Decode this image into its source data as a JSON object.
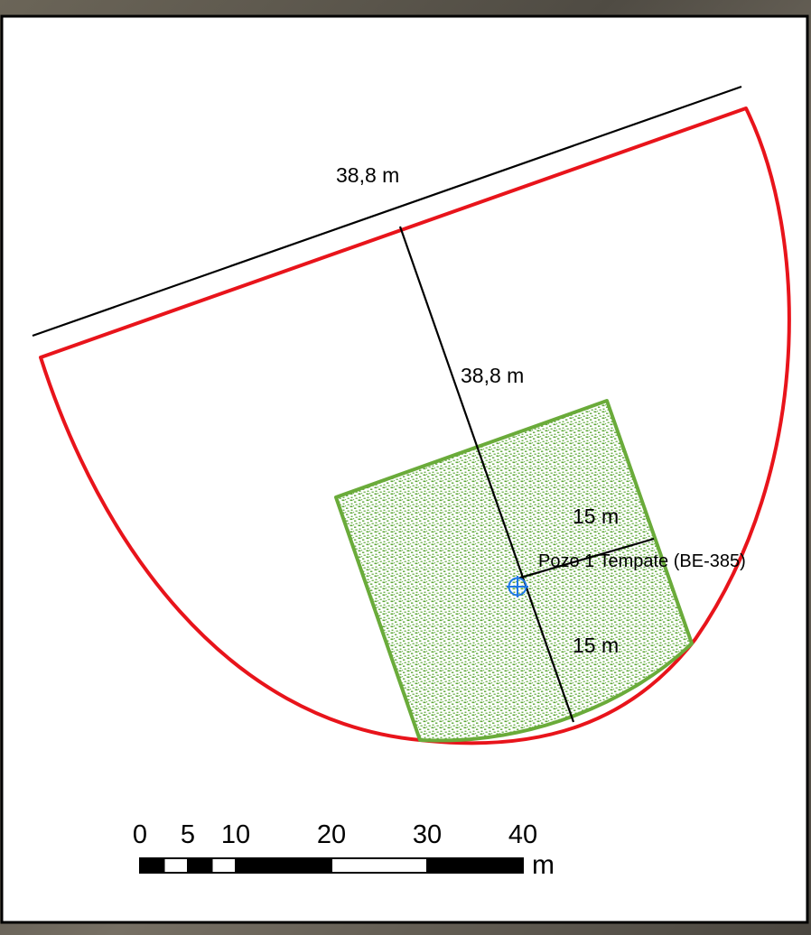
{
  "map": {
    "background_color": "#ffffff",
    "border_color": "#000000",
    "frame_color": "#5e5a52"
  },
  "labels": {
    "top_dimension": "38,8 m",
    "axis_dimension": "38,8 m",
    "upper_half_width": "15 m",
    "lower_half_width": "15 m",
    "well_name": "Pozo 1 Tempate (BE-385)"
  },
  "styles": {
    "outer_zone_color": "#e8141b",
    "inner_zone_stroke_color": "#6aab3a",
    "inner_zone_fill_color": "#5fa83a",
    "well_symbol_color": "#1e78e6",
    "measurement_line_color": "#000000"
  },
  "well_symbol": {
    "icon": "well-crosshair-icon"
  },
  "scale_bar": {
    "ticks": [
      "0",
      "5",
      "10",
      "20",
      "30",
      "40"
    ],
    "tick_values": [
      0,
      5,
      10,
      20,
      30,
      40
    ],
    "unit": "m",
    "segment_colors": [
      "#000000",
      "#ffffff",
      "#000000",
      "#ffffff",
      "#000000",
      "#ffffff",
      "#000000"
    ]
  }
}
